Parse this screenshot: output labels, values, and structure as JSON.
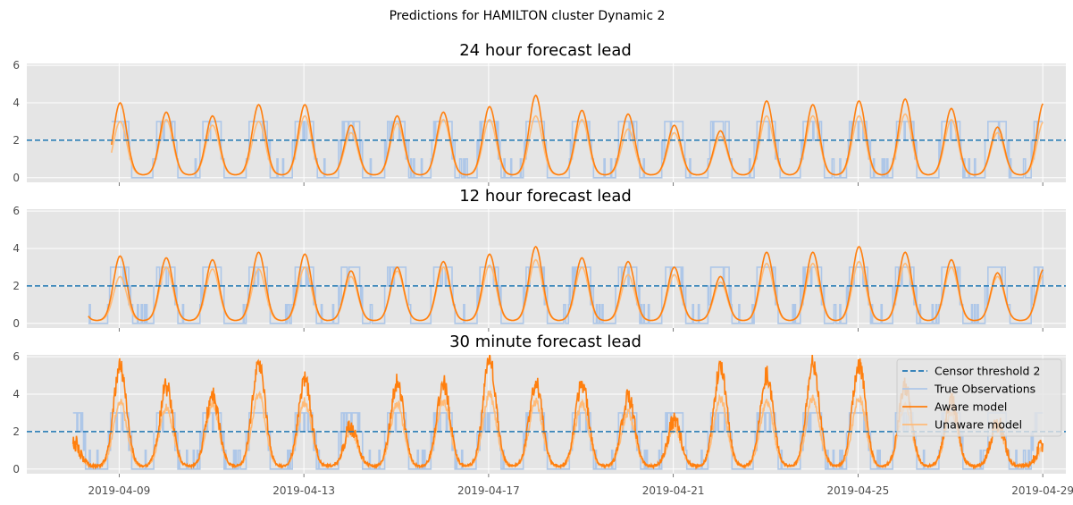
{
  "figure": {
    "suptitle": "Predictions for HAMILTON cluster Dynamic 2"
  },
  "colors": {
    "panel_bg": "#e5e5e5",
    "grid": "#ffffff",
    "censor": "#1f77b4",
    "observations": "#aec7e8",
    "aware": "#ff7f0e",
    "unaware": "#ffbb78"
  },
  "legend": {
    "placement": "right",
    "items": [
      {
        "key": "censor",
        "label": "Censor threshold 2",
        "style": "dashed"
      },
      {
        "key": "observations",
        "label": "True Observations",
        "style": "solid"
      },
      {
        "key": "aware",
        "label": "Aware model",
        "style": "solid"
      },
      {
        "key": "unaware",
        "label": "Unaware model",
        "style": "solid"
      }
    ]
  },
  "xaxis": {
    "ticks": [
      {
        "date": "2019-04-09",
        "label": "2019-04-09"
      },
      {
        "date": "2019-04-13",
        "label": "2019-04-13"
      },
      {
        "date": "2019-04-17",
        "label": "2019-04-17"
      },
      {
        "date": "2019-04-21",
        "label": "2019-04-21"
      },
      {
        "date": "2019-04-25",
        "label": "2019-04-25"
      },
      {
        "date": "2019-04-29",
        "label": "2019-04-29"
      }
    ]
  },
  "chart_data": [
    {
      "type": "line",
      "title": "24 hour forecast lead",
      "xlabel": "",
      "ylabel": "",
      "ylim": [
        -0.25,
        6.1
      ],
      "yticks": [
        0,
        2,
        4,
        6
      ],
      "grid": true,
      "censor_threshold": 2,
      "x_range": [
        "2019-04-08T20:00",
        "2019-04-29T00:00"
      ],
      "observations_range": [
        "2019-04-08T20:00",
        "2019-04-29T00:00"
      ],
      "daily_peaks": {
        "dates": [
          "2019-04-09",
          "2019-04-10",
          "2019-04-11",
          "2019-04-12",
          "2019-04-13",
          "2019-04-14",
          "2019-04-15",
          "2019-04-16",
          "2019-04-17",
          "2019-04-18",
          "2019-04-19",
          "2019-04-20",
          "2019-04-21",
          "2019-04-22",
          "2019-04-23",
          "2019-04-24",
          "2019-04-25",
          "2019-04-26",
          "2019-04-27",
          "2019-04-28"
        ],
        "aware": [
          4.0,
          3.5,
          3.3,
          3.9,
          3.9,
          2.8,
          3.3,
          3.5,
          3.8,
          4.4,
          3.6,
          3.4,
          2.8,
          2.5,
          4.1,
          3.9,
          4.1,
          4.2,
          3.7,
          2.7
        ],
        "unaware": [
          3.0,
          3.1,
          2.8,
          3.0,
          3.3,
          2.4,
          2.9,
          3.1,
          3.1,
          3.3,
          3.1,
          2.6,
          2.4,
          2.2,
          3.3,
          3.3,
          3.3,
          3.4,
          3.1,
          2.4
        ]
      }
    },
    {
      "type": "line",
      "title": "12 hour forecast lead",
      "xlabel": "",
      "ylabel": "",
      "ylim": [
        -0.25,
        6.1
      ],
      "yticks": [
        0,
        2,
        4,
        6
      ],
      "grid": true,
      "censor_threshold": 2,
      "x_range": [
        "2019-04-08T08:00",
        "2019-04-29T00:00"
      ],
      "observations_range": [
        "2019-04-08T08:00",
        "2019-04-29T00:00"
      ],
      "daily_peaks": {
        "dates": [
          "2019-04-08",
          "2019-04-09",
          "2019-04-10",
          "2019-04-11",
          "2019-04-12",
          "2019-04-13",
          "2019-04-14",
          "2019-04-15",
          "2019-04-16",
          "2019-04-17",
          "2019-04-18",
          "2019-04-19",
          "2019-04-20",
          "2019-04-21",
          "2019-04-22",
          "2019-04-23",
          "2019-04-24",
          "2019-04-25",
          "2019-04-26",
          "2019-04-27",
          "2019-04-28"
        ],
        "aware": [
          2.9,
          3.6,
          3.5,
          3.4,
          3.8,
          3.7,
          2.8,
          3.0,
          3.3,
          3.7,
          4.1,
          3.5,
          3.3,
          3.0,
          2.5,
          3.8,
          3.8,
          4.1,
          3.8,
          3.4,
          2.7
        ],
        "unaware": [
          2.6,
          2.5,
          3.0,
          2.9,
          2.9,
          3.0,
          2.5,
          2.8,
          3.0,
          3.1,
          3.4,
          3.0,
          2.6,
          2.6,
          2.2,
          3.2,
          3.2,
          3.3,
          3.2,
          3.0,
          2.5
        ]
      }
    },
    {
      "type": "line",
      "title": "30 minute forecast lead",
      "xlabel": "",
      "ylabel": "",
      "ylim": [
        -0.25,
        6.1
      ],
      "yticks": [
        0,
        2,
        4,
        6
      ],
      "grid": true,
      "censor_threshold": 2,
      "x_range": [
        "2019-04-08T00:00",
        "2019-04-29T00:00"
      ],
      "observations_range": [
        "2019-04-08T00:00",
        "2019-04-29T00:00"
      ],
      "daily_peaks": {
        "dates": [
          "2019-04-08",
          "2019-04-09",
          "2019-04-10",
          "2019-04-11",
          "2019-04-12",
          "2019-04-13",
          "2019-04-14",
          "2019-04-15",
          "2019-04-16",
          "2019-04-17",
          "2019-04-18",
          "2019-04-19",
          "2019-04-20",
          "2019-04-21",
          "2019-04-22",
          "2019-04-23",
          "2019-04-24",
          "2019-04-25",
          "2019-04-26",
          "2019-04-27",
          "2019-04-28"
        ],
        "aware": [
          1.4,
          5.5,
          4.4,
          4.0,
          5.7,
          4.7,
          2.3,
          4.6,
          4.6,
          5.8,
          4.6,
          4.6,
          3.9,
          2.6,
          5.4,
          5.0,
          5.6,
          5.6,
          4.4,
          3.6,
          2.5
        ],
        "unaware": [
          1.2,
          3.6,
          3.3,
          3.4,
          4.0,
          3.6,
          2.0,
          3.5,
          3.6,
          4.0,
          3.6,
          3.5,
          3.0,
          2.2,
          3.8,
          3.6,
          3.8,
          3.8,
          3.4,
          3.0,
          2.2
        ]
      }
    }
  ]
}
